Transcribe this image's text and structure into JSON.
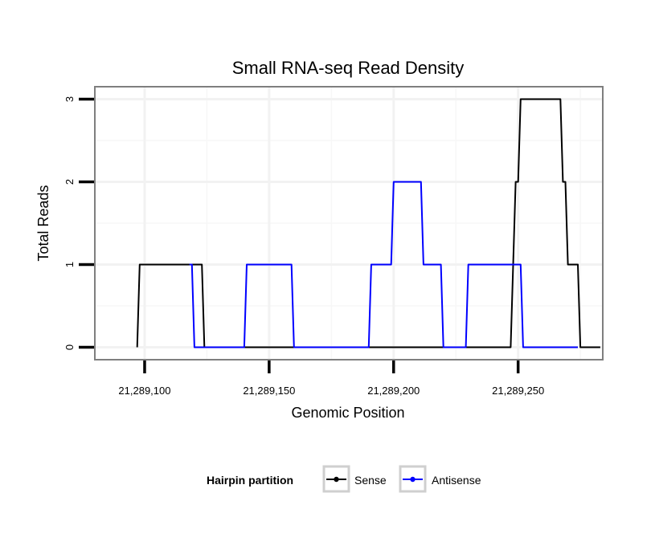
{
  "chart_data": {
    "type": "line",
    "title": "Small RNA-seq Read Density",
    "xlabel": "Genomic Position",
    "ylabel": "Total Reads",
    "xlim": [
      21289080,
      21289284
    ],
    "ylim": [
      -0.15,
      3.15
    ],
    "x_ticks": [
      21289100,
      21289150,
      21289200,
      21289250
    ],
    "x_tick_labels": [
      "21,289,100",
      "21,289,150",
      "21,289,200",
      "21,289,250"
    ],
    "y_ticks": [
      0,
      1,
      2,
      3
    ],
    "y_tick_labels": [
      "0",
      "1",
      "2",
      "3"
    ],
    "grid": true,
    "legend": {
      "title": "Hairpin partition",
      "position": "bottom"
    },
    "series": [
      {
        "name": "Sense",
        "color": "#000000",
        "x": [
          21289097,
          21289098,
          21289099,
          21289122,
          21289123,
          21289124,
          21289246,
          21289247,
          21289248,
          21289249,
          21289250,
          21289251,
          21289267,
          21289268,
          21289269,
          21289270,
          21289274,
          21289275,
          21289283
        ],
        "y": [
          0,
          1,
          1,
          1,
          1,
          0,
          0,
          0,
          1,
          2,
          2,
          3,
          3,
          2,
          2,
          1,
          1,
          0,
          0
        ]
      },
      {
        "name": "Antisense",
        "color": "#0000ff",
        "x": [
          21289118,
          21289119,
          21289120,
          21289140,
          21289141,
          21289159,
          21289160,
          21289190,
          21289191,
          21289199,
          21289200,
          21289211,
          21289212,
          21289219,
          21289220,
          21289229,
          21289230,
          21289251,
          21289252,
          21289274
        ],
        "y": [
          1,
          1,
          0,
          0,
          1,
          1,
          0,
          0,
          1,
          1,
          2,
          2,
          1,
          1,
          0,
          0,
          1,
          1,
          0,
          0
        ]
      }
    ]
  }
}
